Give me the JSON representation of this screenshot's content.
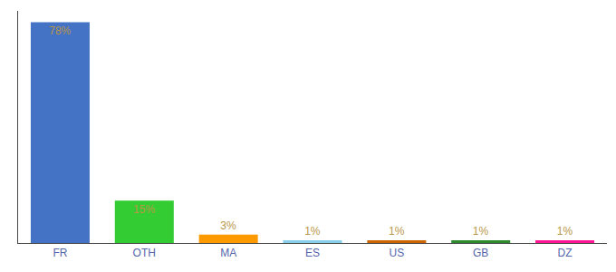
{
  "chart_data": {
    "type": "bar",
    "categories": [
      "FR",
      "OTH",
      "MA",
      "ES",
      "US",
      "GB",
      "DZ"
    ],
    "values": [
      78,
      15,
      3,
      1,
      1,
      1,
      1
    ],
    "value_labels": [
      "78%",
      "15%",
      "3%",
      "1%",
      "1%",
      "1%",
      "1%"
    ],
    "colors": [
      "#4472c4",
      "#33cc33",
      "#ff9900",
      "#87ceeb",
      "#cc6600",
      "#2d8a2d",
      "#ff1493"
    ],
    "ylim": [
      0,
      82
    ],
    "data_labels": true,
    "tick_labels": "x",
    "grid": false
  }
}
